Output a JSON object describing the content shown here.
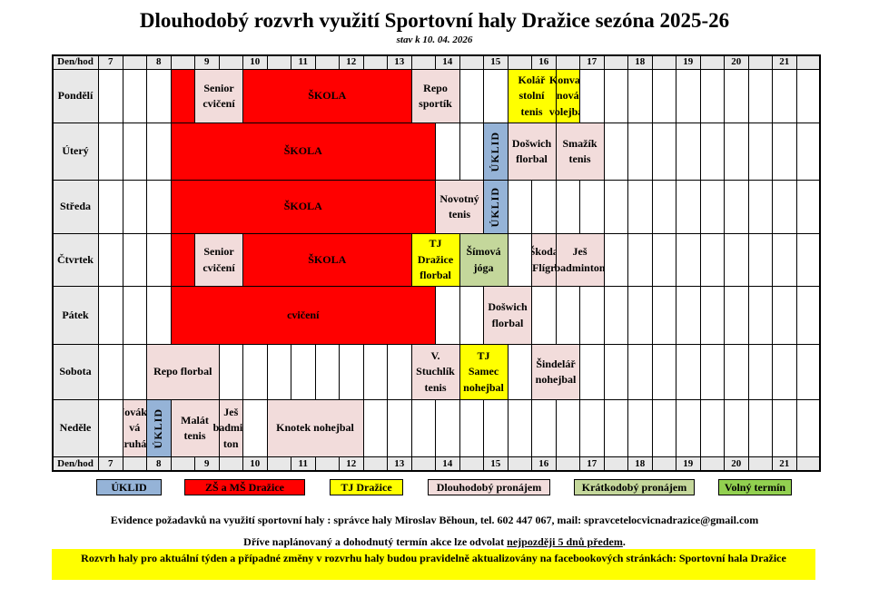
{
  "title": "Dlouhodobý rozvrh využití Sportovní haly Dražice sezóna 2025-26",
  "subtitle": "stav k 10. 04. 2026",
  "colors": {
    "uklid": "#95b3d7",
    "skola": "#ff0000",
    "tj": "#ffff00",
    "dlouhodoby": "#f2dcdb",
    "kratkodoby": "#c4d79b",
    "volny": "#92d050"
  },
  "header": {
    "label": "Den/hod",
    "hours": [
      "7",
      "",
      "8",
      "",
      "9",
      "",
      "10",
      "",
      "11",
      "",
      "12",
      "",
      "13",
      "",
      "14",
      "",
      "15",
      "",
      "16",
      "",
      "17",
      "",
      "18",
      "",
      "19",
      "",
      "20",
      "",
      "21",
      ""
    ]
  },
  "days": [
    {
      "name": "Pondělí",
      "events": [
        {
          "start": 3,
          "end": 4,
          "label": "",
          "type": "skola"
        },
        {
          "start": 4,
          "end": 6,
          "label": "Senior cvičení",
          "type": "dlouhodoby"
        },
        {
          "start": 6,
          "end": 13,
          "label": "ŠKOLA",
          "type": "skola"
        },
        {
          "start": 13,
          "end": 15,
          "label": "Repo sportík",
          "type": "dlouhodoby"
        },
        {
          "start": 17,
          "end": 19,
          "label": "Kolář stolní tenis",
          "type": "tj"
        },
        {
          "start": 19,
          "end": 20,
          "label": "Konvali nová volejbal",
          "type": "tj"
        }
      ]
    },
    {
      "name": "Úterý",
      "events": [
        {
          "start": 3,
          "end": 14,
          "label": "ŠKOLA",
          "type": "skola"
        },
        {
          "start": 16,
          "end": 17,
          "label": "ÚKLID",
          "type": "uklid",
          "vertical": true
        },
        {
          "start": 17,
          "end": 19,
          "label": "Došwich florbal",
          "type": "dlouhodoby"
        },
        {
          "start": 19,
          "end": 21,
          "label": "Smažík tenis",
          "type": "dlouhodoby"
        }
      ]
    },
    {
      "name": "Středa",
      "events": [
        {
          "start": 3,
          "end": 14,
          "label": "ŠKOLA",
          "type": "skola"
        },
        {
          "start": 14,
          "end": 16,
          "label": "Novotný tenis",
          "type": "dlouhodoby"
        },
        {
          "start": 16,
          "end": 17,
          "label": "ÚKLID",
          "type": "uklid",
          "vertical": true
        }
      ]
    },
    {
      "name": "Čtvrtek",
      "events": [
        {
          "start": 3,
          "end": 4,
          "label": "",
          "type": "skola"
        },
        {
          "start": 4,
          "end": 6,
          "label": "Senior cvičení",
          "type": "dlouhodoby"
        },
        {
          "start": 6,
          "end": 13,
          "label": "ŠKOLA",
          "type": "skola"
        },
        {
          "start": 13,
          "end": 15,
          "label": "TJ Dražice florbal",
          "type": "tj"
        },
        {
          "start": 15,
          "end": 17,
          "label": "Šímová jóga",
          "type": "kratkodoby"
        },
        {
          "start": 18,
          "end": 19,
          "label": "Škoda Flígr",
          "type": "dlouhodoby"
        },
        {
          "start": 19,
          "end": 21,
          "label": "Ješ badminton",
          "type": "dlouhodoby"
        }
      ]
    },
    {
      "name": "Pátek",
      "events": [
        {
          "start": 3,
          "end": 14,
          "label": "cvičení",
          "type": "skola"
        },
        {
          "start": 16,
          "end": 18,
          "label": "Došwich florbal",
          "type": "dlouhodoby"
        }
      ]
    },
    {
      "name": "Sobota",
      "events": [
        {
          "start": 2,
          "end": 5,
          "label": "Repo florbal",
          "type": "dlouhodoby"
        },
        {
          "start": 13,
          "end": 15,
          "label": "V. Stuchlík tenis",
          "type": "dlouhodoby"
        },
        {
          "start": 15,
          "end": 17,
          "label": "TJ Samec nohejbal",
          "type": "tj"
        },
        {
          "start": 18,
          "end": 20,
          "label": "Šindelář nohejbal",
          "type": "dlouhodoby"
        }
      ]
    },
    {
      "name": "Neděle",
      "events": [
        {
          "start": 1,
          "end": 2,
          "label": "Nováko vá kruháč",
          "type": "dlouhodoby"
        },
        {
          "start": 2,
          "end": 3,
          "label": "ÚKLID",
          "type": "uklid",
          "vertical": true
        },
        {
          "start": 3,
          "end": 5,
          "label": "Malát tenis",
          "type": "dlouhodoby"
        },
        {
          "start": 5,
          "end": 6,
          "label": "Ješ badmin ton",
          "type": "dlouhodoby"
        },
        {
          "start": 7,
          "end": 11,
          "label": "Knotek nohejbal",
          "type": "dlouhodoby"
        }
      ]
    }
  ],
  "legend": [
    {
      "label": "ÚKLID",
      "type": "uklid"
    },
    {
      "label": "ZŠ a MŠ Dražice",
      "type": "skola"
    },
    {
      "label": "TJ Dražice",
      "type": "tj"
    },
    {
      "label": "Dlouhodobý pronájem",
      "type": "dlouhodoby"
    },
    {
      "label": "Krátkodobý pronájem",
      "type": "kratkodoby"
    },
    {
      "label": "Volný termín",
      "type": "volny"
    }
  ],
  "info": {
    "contact": "Evidence požadavků na využití sportovní haly : správce haly Miroslav Běhoun, tel. 602 447 067, mail: spravcetelocvicnadrazice@gmail.com",
    "cancel_prefix": "Dříve naplánovaný a dohodnutý termín akce lze odvolat ",
    "cancel_underlined": "nejpozději 5 dnů předem",
    "cancel_suffix": ".",
    "banner": "Rozvrh haly pro aktuální týden a případné změny v rozvrhu haly budou pravidelně aktualizovány na facebookových stránkách: Sportovní hala Dražice"
  }
}
